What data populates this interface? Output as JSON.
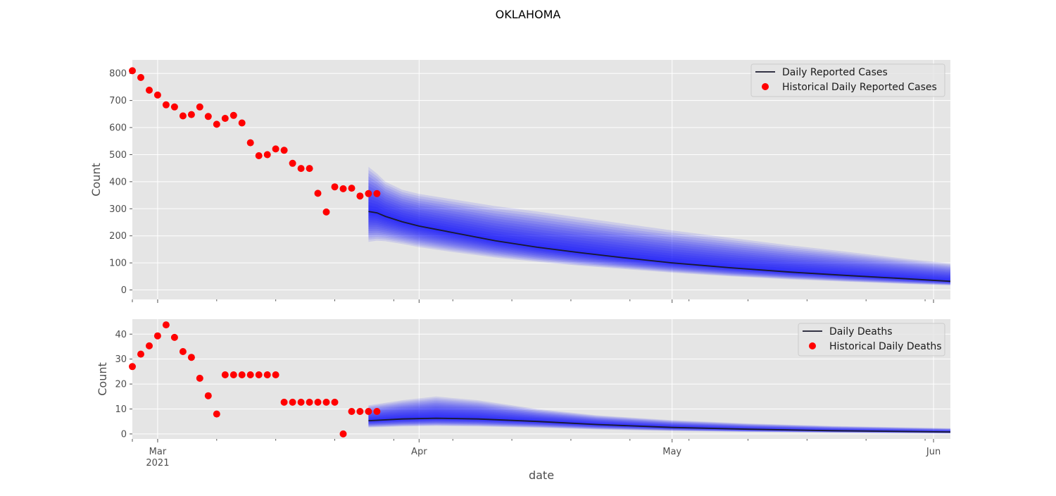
{
  "figure": {
    "title": "OKLAHOMA",
    "xlabel": "date",
    "colors": {
      "panel_bg": "#e5e5e5",
      "grid": "#ffffff",
      "historical": "#ff0000",
      "forecast_line": "#1a1a2e",
      "band": "#0000ff"
    }
  },
  "chart_data": [
    {
      "type": "scatter",
      "panel": "top",
      "title": "",
      "xlabel": "",
      "ylabel": "Count",
      "ylim": [
        -35,
        850
      ],
      "yticks": [
        0,
        100,
        200,
        300,
        400,
        500,
        600,
        700,
        800
      ],
      "xrange": [
        "2021-02-26",
        "2021-06-03"
      ],
      "xticks": [
        {
          "date": "2021-03-01",
          "label": "Mar",
          "sublabel": "2021"
        },
        {
          "date": "2021-04-01",
          "label": "Apr",
          "sublabel": ""
        },
        {
          "date": "2021-05-01",
          "label": "May",
          "sublabel": ""
        },
        {
          "date": "2021-06-01",
          "label": "Jun",
          "sublabel": ""
        }
      ],
      "grid": true,
      "legend_position": "top-right",
      "legend": [
        "Daily Reported Cases",
        "Historical Daily Reported Cases"
      ],
      "historical": {
        "name": "Historical Daily Reported Cases",
        "start": "2021-02-26",
        "values": [
          810,
          785,
          738,
          720,
          684,
          676,
          643,
          648,
          676,
          641,
          612,
          634,
          645,
          617,
          544,
          496,
          500,
          521,
          516,
          468,
          449,
          449,
          357,
          288,
          381,
          374,
          376,
          347,
          356,
          356
        ]
      },
      "forecast": {
        "name": "Daily Reported Cases",
        "dates": [
          "2021-03-26",
          "2021-03-27",
          "2021-03-28",
          "2021-03-30",
          "2021-04-01",
          "2021-04-05",
          "2021-04-10",
          "2021-04-15",
          "2021-04-20",
          "2021-04-25",
          "2021-05-01",
          "2021-05-08",
          "2021-05-15",
          "2021-05-22",
          "2021-05-29",
          "2021-06-03"
        ],
        "median": [
          290,
          285,
          272,
          252,
          236,
          212,
          182,
          158,
          138,
          120,
          100,
          82,
          66,
          53,
          41,
          32
        ],
        "lower": [
          178,
          182,
          180,
          170,
          158,
          140,
          120,
          104,
          90,
          78,
          64,
          50,
          39,
          30,
          22,
          17
        ],
        "upper": [
          455,
          430,
          400,
          370,
          355,
          335,
          310,
          290,
          268,
          246,
          220,
          192,
          165,
          140,
          114,
          98
        ]
      }
    },
    {
      "type": "scatter",
      "panel": "bottom",
      "title": "",
      "xlabel": "date",
      "ylabel": "Count",
      "ylim": [
        -2,
        46
      ],
      "yticks": [
        0,
        10,
        20,
        30,
        40
      ],
      "xrange": [
        "2021-02-26",
        "2021-06-03"
      ],
      "xticks": [
        {
          "date": "2021-03-01",
          "label": "Mar",
          "sublabel": "2021"
        },
        {
          "date": "2021-04-01",
          "label": "Apr",
          "sublabel": ""
        },
        {
          "date": "2021-05-01",
          "label": "May",
          "sublabel": ""
        },
        {
          "date": "2021-06-01",
          "label": "Jun",
          "sublabel": ""
        }
      ],
      "grid": true,
      "legend_position": "top-right",
      "legend": [
        "Daily Deaths",
        "Historical Daily Deaths"
      ],
      "historical": {
        "name": "Historical Daily Deaths",
        "start": "2021-02-26",
        "values": [
          27,
          32,
          35.3,
          39.3,
          43.7,
          38.7,
          33,
          30.7,
          22.3,
          15.3,
          8,
          23.7,
          23.7,
          23.7,
          23.7,
          23.7,
          23.7,
          23.7,
          12.7,
          12.7,
          12.7,
          12.7,
          12.7,
          12.7,
          12.7,
          0,
          9,
          9,
          9,
          9
        ]
      },
      "forecast": {
        "name": "Daily Deaths",
        "dates": [
          "2021-03-26",
          "2021-03-30",
          "2021-04-03",
          "2021-04-08",
          "2021-04-15",
          "2021-04-22",
          "2021-05-01",
          "2021-05-10",
          "2021-05-20",
          "2021-06-03"
        ],
        "median": [
          5.3,
          6.0,
          6.3,
          6.0,
          5.0,
          3.8,
          2.6,
          1.9,
          1.3,
          0.8
        ],
        "lower": [
          2.6,
          3.0,
          3.2,
          3.0,
          2.5,
          1.8,
          1.2,
          0.8,
          0.5,
          0.2
        ],
        "upper": [
          11.5,
          13.5,
          15.0,
          13.5,
          10.0,
          7.5,
          5.5,
          4.2,
          3.2,
          2.3
        ]
      }
    }
  ]
}
